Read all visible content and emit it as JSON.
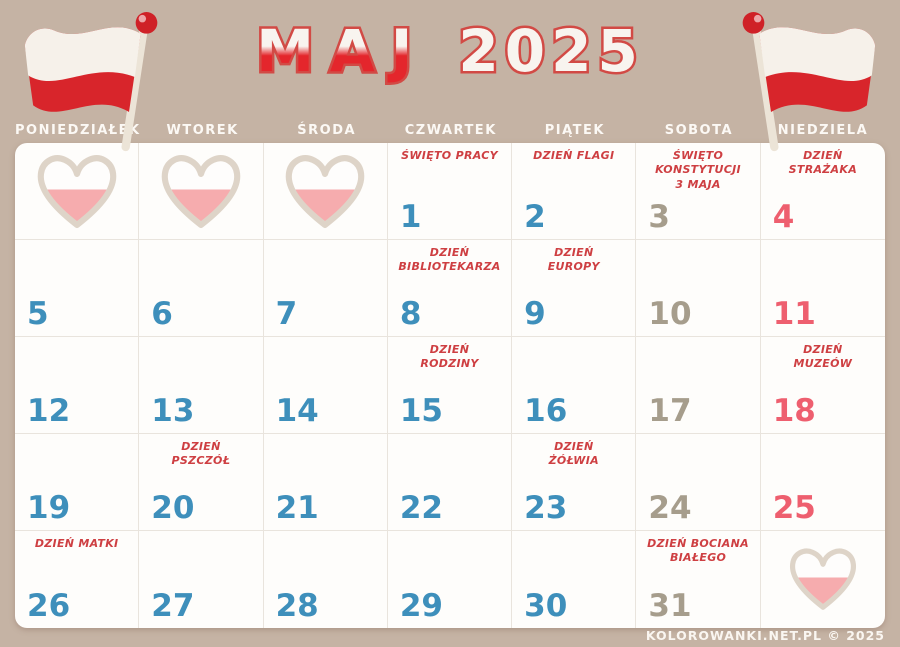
{
  "title": {
    "month": "MAJ",
    "year": "2025"
  },
  "weekday_headers": [
    "PONIEDZIAŁEK",
    "WTOREK",
    "ŚRODA",
    "CZWARTEK",
    "PIĄTEK",
    "SOBOTA",
    "NIEDZIELA"
  ],
  "cells": [
    {
      "heart": true,
      "heart_size": "large"
    },
    {
      "heart": true,
      "heart_size": "large"
    },
    {
      "heart": true,
      "heart_size": "large"
    },
    {
      "day": "1",
      "holiday_lines": [
        "ŚWIĘTO PRACY"
      ]
    },
    {
      "day": "2",
      "holiday_lines": [
        "DZIEŃ FLAGI"
      ]
    },
    {
      "day": "3",
      "holiday_lines": [
        "ŚWIĘTO",
        "KONSTYTUCJI",
        "3 MAJA"
      ]
    },
    {
      "day": "4",
      "holiday_lines": [
        "DZIEŃ",
        "STRAŻAKA"
      ]
    },
    {
      "day": "5"
    },
    {
      "day": "6"
    },
    {
      "day": "7"
    },
    {
      "day": "8",
      "holiday_lines": [
        "DZIEŃ",
        "BIBLIOTEKARZA"
      ]
    },
    {
      "day": "9",
      "holiday_lines": [
        "DZIEŃ",
        "EUROPY"
      ]
    },
    {
      "day": "10"
    },
    {
      "day": "11"
    },
    {
      "day": "12"
    },
    {
      "day": "13"
    },
    {
      "day": "14"
    },
    {
      "day": "15",
      "holiday_lines": [
        "DZIEŃ",
        "RODZINY"
      ]
    },
    {
      "day": "16"
    },
    {
      "day": "17"
    },
    {
      "day": "18",
      "holiday_lines": [
        "DZIEŃ",
        "MUZEÓW"
      ]
    },
    {
      "day": "19"
    },
    {
      "day": "20",
      "holiday_lines": [
        "DZIEŃ",
        "PSZCZÓŁ"
      ]
    },
    {
      "day": "21"
    },
    {
      "day": "22"
    },
    {
      "day": "23",
      "holiday_lines": [
        "DZIEŃ",
        "ŻÓŁWIA"
      ]
    },
    {
      "day": "24"
    },
    {
      "day": "25"
    },
    {
      "day": "26",
      "holiday_lines": [
        "DZIEŃ MATKI"
      ]
    },
    {
      "day": "27"
    },
    {
      "day": "28"
    },
    {
      "day": "29"
    },
    {
      "day": "30"
    },
    {
      "day": "31",
      "holiday_lines": [
        "DZIEŃ BOCIANA",
        "BIAŁEGO"
      ]
    },
    {
      "heart": true,
      "heart_size": "small"
    }
  ],
  "footer": {
    "credit": "KOLOROWANKI.NET.PL © 2025"
  },
  "icons": {
    "flag": "polish-flag",
    "heart": "polish-heart"
  },
  "colors": {
    "background": "#c5b3a4",
    "cell_bg": "#fefdfb",
    "grid_line": "#e9e4dd",
    "weekday_number": "#3e8fbb",
    "saturday_number": "#a69d8c",
    "sunday_number": "#ee5f6f",
    "holiday_text": "#ce3f42",
    "header_text": "#fcf9f5",
    "footer_text": "#faf6f1",
    "title_outline": "#d24a45",
    "title_red": "#e4262c",
    "title_white": "#f8f4ef",
    "heart_pink": "#f6acae",
    "heart_outline": "#ded4c8",
    "flag_red": "#d8252b",
    "flag_white": "#f6f1ea",
    "flag_pole": "#ece4d7"
  }
}
